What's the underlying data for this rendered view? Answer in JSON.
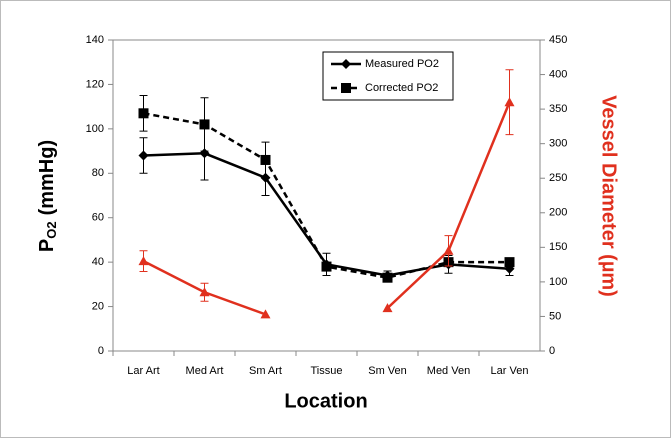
{
  "chart_data": {
    "type": "line",
    "x_label": "Location",
    "y_label": [
      "P",
      "O2",
      "(mmHg)"
    ],
    "y2_label": "Vessel Diameter (µm)",
    "y2_label_color": "#e0301e",
    "categories": [
      "Lar Art",
      "Med Art",
      "Sm Art",
      "Tissue",
      "Sm Ven",
      "Med Ven",
      "Lar Ven"
    ],
    "ylim": [
      0,
      140
    ],
    "yticks": [
      0,
      20,
      40,
      60,
      80,
      100,
      120,
      140
    ],
    "y2lim": [
      0,
      450
    ],
    "y2ticks": [
      0,
      50,
      100,
      150,
      200,
      250,
      300,
      350,
      400,
      450
    ],
    "legend": "top-center",
    "series": [
      {
        "name": "Measured PO2",
        "color": "#000000",
        "marker": "diamond",
        "dashed": false,
        "values": [
          88,
          89,
          78,
          39,
          34,
          39,
          37
        ],
        "errors": [
          8,
          12,
          8,
          5,
          2,
          4,
          3
        ]
      },
      {
        "name": "Corrected PO2",
        "color": "#000000",
        "marker": "square",
        "dashed": true,
        "values": [
          107,
          102,
          86,
          38,
          33,
          40,
          40
        ],
        "errors": [
          8,
          12,
          8,
          null,
          null,
          null,
          null
        ]
      },
      {
        "color": "#e0301e",
        "marker": "triangle",
        "dashed": false,
        "axis": "y2",
        "values": [
          130,
          85,
          53,
          null,
          62,
          145,
          360
        ],
        "errors": [
          15,
          13,
          null,
          null,
          null,
          22,
          47
        ]
      }
    ]
  }
}
